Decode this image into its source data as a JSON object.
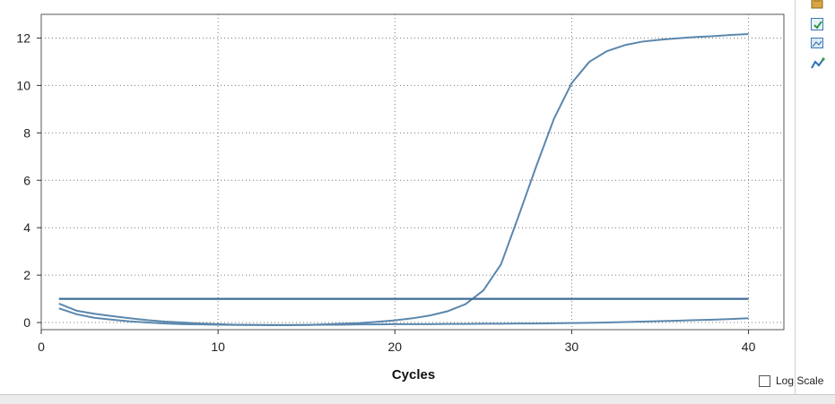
{
  "chart_data": {
    "type": "line",
    "title": "",
    "xlabel": "Cycles",
    "ylabel": "",
    "xlim": [
      0,
      42
    ],
    "ylim": [
      -0.3,
      13
    ],
    "x_ticks": [
      0,
      10,
      20,
      30,
      40
    ],
    "y_ticks": [
      0,
      2,
      4,
      6,
      8,
      10,
      12
    ],
    "grid": true,
    "line_color": "#5b87ad",
    "threshold_color": "#3e6d96",
    "x": [
      1,
      2,
      3,
      4,
      5,
      6,
      7,
      8,
      9,
      10,
      11,
      12,
      13,
      14,
      15,
      16,
      17,
      18,
      19,
      20,
      21,
      22,
      23,
      24,
      25,
      26,
      27,
      28,
      29,
      30,
      31,
      32,
      33,
      34,
      35,
      36,
      37,
      38,
      39,
      40
    ],
    "series": [
      {
        "values": [
          0.8,
          0.5,
          0.37,
          0.27,
          0.18,
          0.1,
          0.04,
          0.0,
          -0.04,
          -0.07,
          -0.09,
          -0.1,
          -0.11,
          -0.11,
          -0.1,
          -0.08,
          -0.05,
          -0.02,
          0.03,
          0.09,
          0.18,
          0.3,
          0.48,
          0.78,
          1.35,
          2.45,
          4.5,
          6.6,
          8.6,
          10.1,
          11.0,
          11.45,
          11.7,
          11.85,
          11.93,
          11.99,
          12.04,
          12.08,
          12.13,
          12.17
        ]
      },
      {
        "values": [
          0.6,
          0.35,
          0.2,
          0.12,
          0.05,
          0.0,
          -0.04,
          -0.07,
          -0.08,
          -0.09,
          -0.1,
          -0.1,
          -0.1,
          -0.1,
          -0.1,
          -0.09,
          -0.09,
          -0.08,
          -0.08,
          -0.07,
          -0.07,
          -0.07,
          -0.06,
          -0.06,
          -0.05,
          -0.05,
          -0.04,
          -0.04,
          -0.03,
          -0.02,
          -0.01,
          0.0,
          0.02,
          0.04,
          0.06,
          0.08,
          0.1,
          0.12,
          0.15,
          0.18
        ]
      },
      {
        "values": [
          1.0,
          1.0,
          1.0,
          1.0,
          1.0,
          1.0,
          1.0,
          1.0,
          1.0,
          1.0,
          1.0,
          1.0,
          1.0,
          1.0,
          1.0,
          1.0,
          1.0,
          1.0,
          1.0,
          1.0,
          1.0,
          1.0,
          1.0,
          1.0,
          1.0,
          1.0,
          1.0,
          1.0,
          1.0,
          1.0,
          1.0,
          1.0,
          1.0,
          1.0,
          1.0,
          1.0,
          1.0,
          1.0,
          1.0,
          1.0
        ]
      }
    ]
  },
  "controls": {
    "log_scale_label": "Log Scale",
    "log_scale_checked": false
  },
  "toolbar": {
    "icons": [
      "export-icon",
      "copy-icon",
      "image-icon",
      "graph-settings-icon"
    ]
  }
}
